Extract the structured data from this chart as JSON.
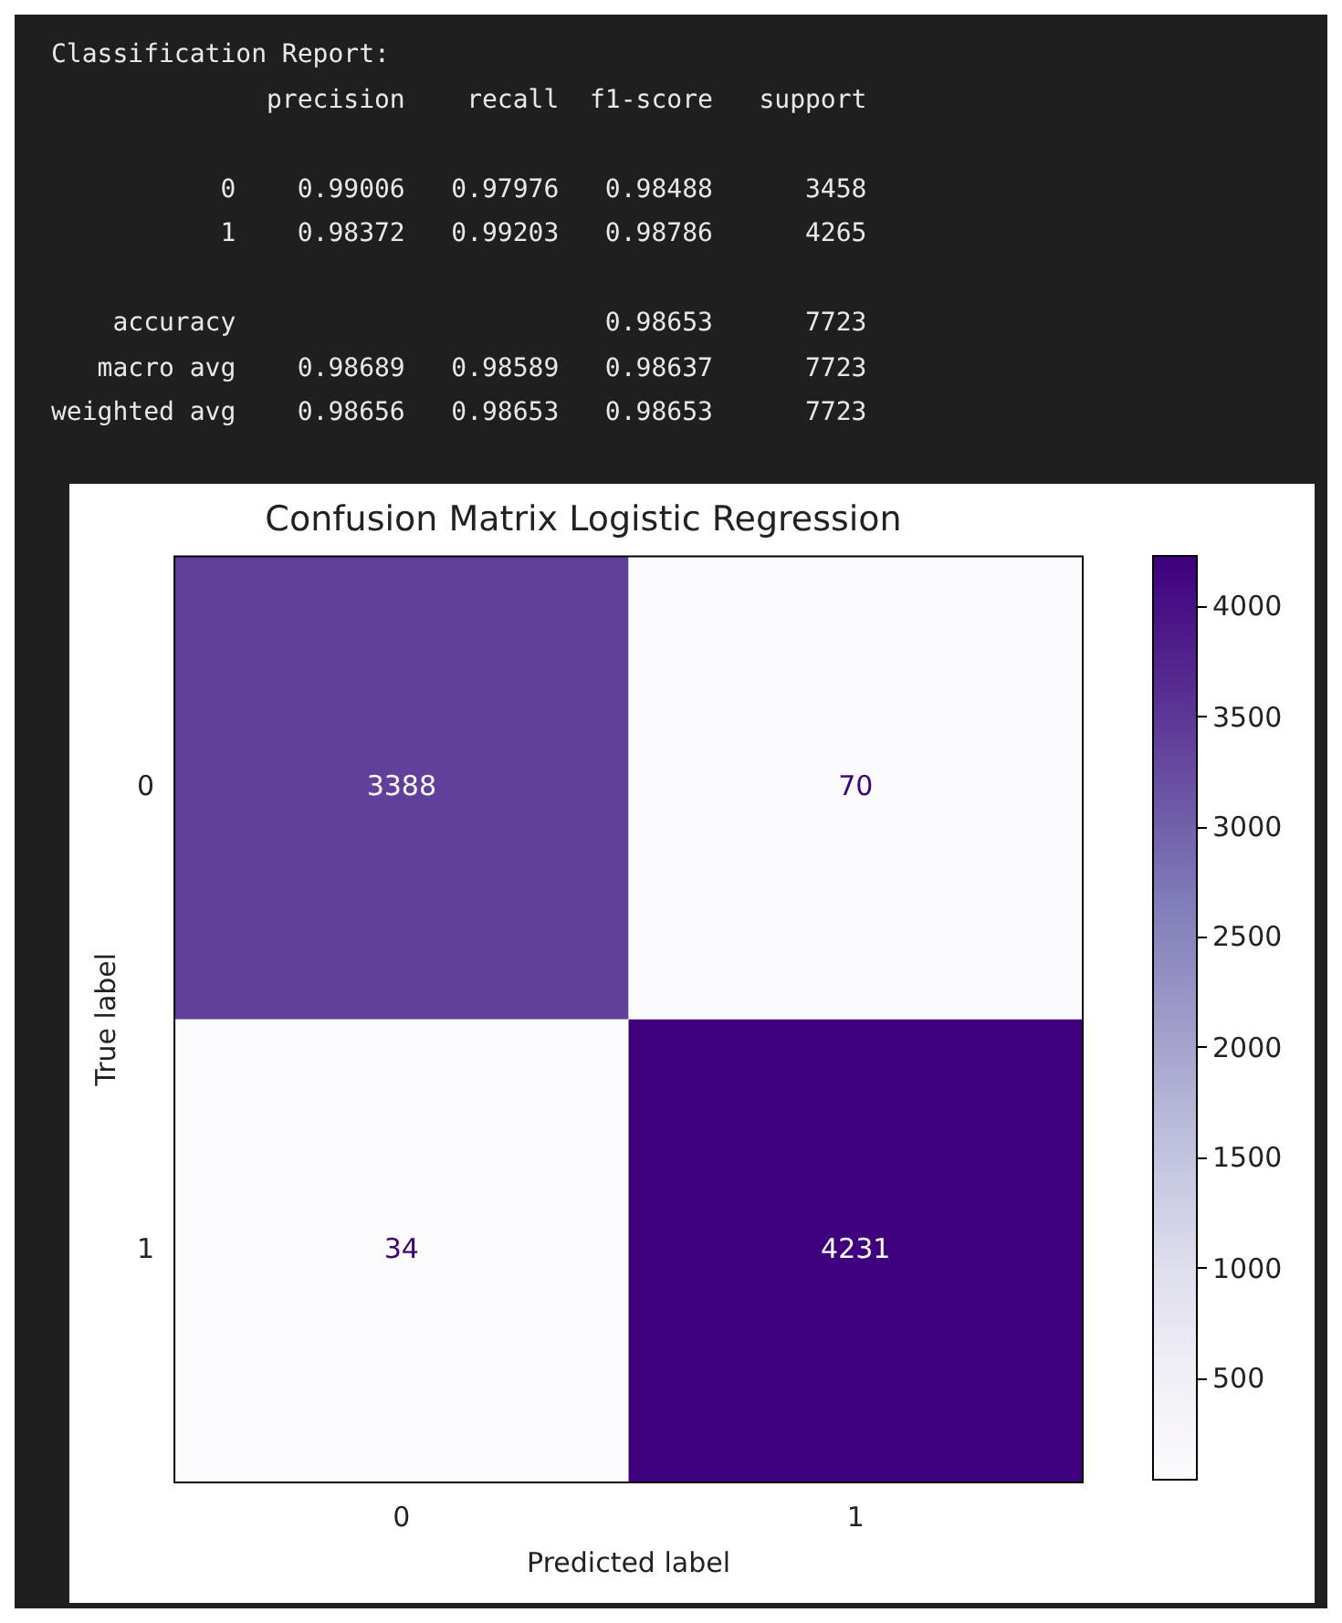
{
  "chart_data": {
    "type": "heatmap",
    "title": "Confusion Matrix Logistic Regression",
    "xlabel": "Predicted label",
    "ylabel": "True label",
    "data_labels": true,
    "categories": [
      "0",
      "1"
    ],
    "y_categories": [
      "0",
      "1"
    ],
    "cells": [
      [
        3388,
        70
      ],
      [
        34,
        4231
      ]
    ],
    "clim": [
      34,
      4231
    ],
    "cticks": [
      500,
      1000,
      1500,
      2000,
      2500,
      3000,
      3500,
      4000
    ],
    "annotations": [
      "Classification Report:\n              precision    recall  f1-score   support\n\n           0    0.99006   0.97976   0.98488      3458\n           1    0.98372   0.99203   0.98786      4265\n\n    accuracy                        0.98653      7723\n   macro avg    0.98689   0.98589   0.98637      7723\nweighted avg    0.98656   0.98653   0.98653      7723"
    ]
  }
}
